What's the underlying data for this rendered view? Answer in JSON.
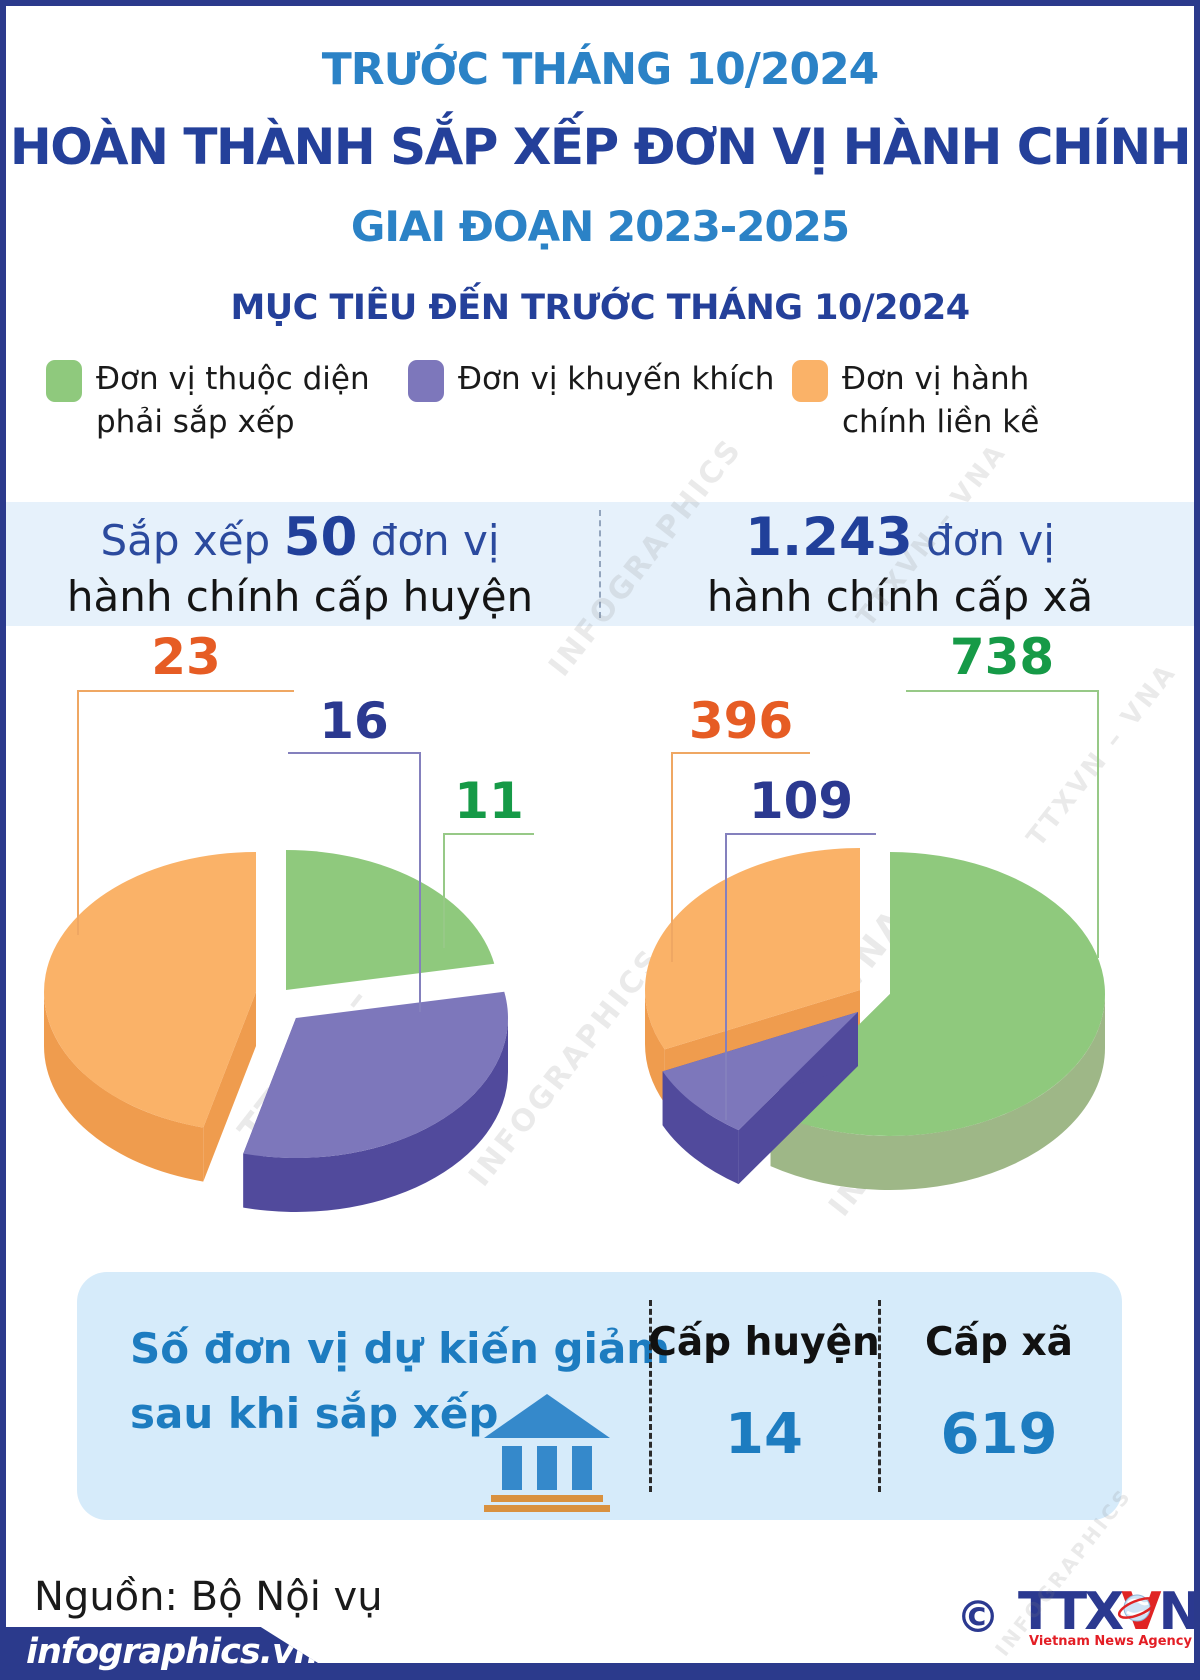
{
  "page": {
    "colors": {
      "navy_border": "#2b3a8c",
      "title_blue": "#2b82c6",
      "title_navy": "#24409a",
      "band_bg": "#e6f1fb",
      "box_bg": "#d6ebfa",
      "box_blue": "#1d7cc0"
    }
  },
  "header": {
    "super_title": "TRƯỚC THÁNG 10/2024",
    "title": "HOÀN THÀNH SẮP XẾP ĐƠN VỊ HÀNH CHÍNH",
    "sub_title": "GIAI ĐOẠN 2023-2025",
    "section_title": "MỤC TIÊU ĐẾN TRƯỚC THÁNG 10/2024"
  },
  "legend": {
    "items": [
      {
        "label": "Đơn vị thuộc diện phải sắp xếp",
        "color": "#8fc97d"
      },
      {
        "label": "Đơn vị khuyến khích",
        "color": "#7d77bb"
      },
      {
        "label": "Đơn vị hành chính liền kề",
        "color": "#fab268"
      }
    ]
  },
  "summary_band": {
    "left": {
      "prefix": "Sắp xếp ",
      "number": "50",
      "suffix": " đơn vị",
      "line2": "hành chính cấp huyện"
    },
    "right": {
      "prefix": "",
      "number": "1.243",
      "suffix": " đơn vị",
      "line2": "hành chính cấp xã"
    }
  },
  "chart_data": [
    {
      "type": "pie",
      "title": "Sắp xếp 50 đơn vị hành chính cấp huyện",
      "total": 50,
      "legend_position": "top",
      "slices": [
        {
          "label": "Đơn vị thuộc diện phải sắp xếp",
          "value": 11,
          "color": "#8fc97d",
          "side_color": "#9eb787",
          "label_color": "#169a47"
        },
        {
          "label": "Đơn vị khuyến khích",
          "value": 16,
          "color": "#7d77bb",
          "side_color": "#514a9c",
          "label_color": "#2b3990"
        },
        {
          "label": "Đơn vị hành chính liền kề",
          "value": 23,
          "color": "#fab268",
          "side_color": "#ef9c4e",
          "label_color": "#e65c24"
        }
      ]
    },
    {
      "type": "pie",
      "title": "1.243 đơn vị hành chính cấp xã",
      "total": 1243,
      "legend_position": "top",
      "slices": [
        {
          "label": "Đơn vị thuộc diện phải sắp xếp",
          "value": 738,
          "color": "#8fc97d",
          "side_color": "#9eb787",
          "label_color": "#169a47"
        },
        {
          "label": "Đơn vị khuyến khích",
          "value": 109,
          "color": "#7d77bb",
          "side_color": "#514a9c",
          "label_color": "#2b3990"
        },
        {
          "label": "Đơn vị hành chính liền kề",
          "value": 396,
          "color": "#fab268",
          "side_color": "#ef9c4e",
          "label_color": "#e65c24"
        }
      ]
    }
  ],
  "reduction_box": {
    "title_line1": "Số đơn vị dự kiến giảm",
    "title_line2": "sau khi sắp xếp",
    "columns": [
      {
        "label": "Cấp huyện",
        "value": "14"
      },
      {
        "label": "Cấp xã",
        "value": "619"
      }
    ]
  },
  "footer": {
    "source": "Nguồn: Bộ Nội vụ",
    "brand": "infographics.vn",
    "copyright": "©",
    "agency_t1": "TTX",
    "agency_v": "V",
    "agency_n": "N",
    "agency_sub": "Vietnam News Agency"
  },
  "watermark": {
    "texts": [
      "TTXVN – VNA",
      "INFOGRAPHICS"
    ]
  }
}
